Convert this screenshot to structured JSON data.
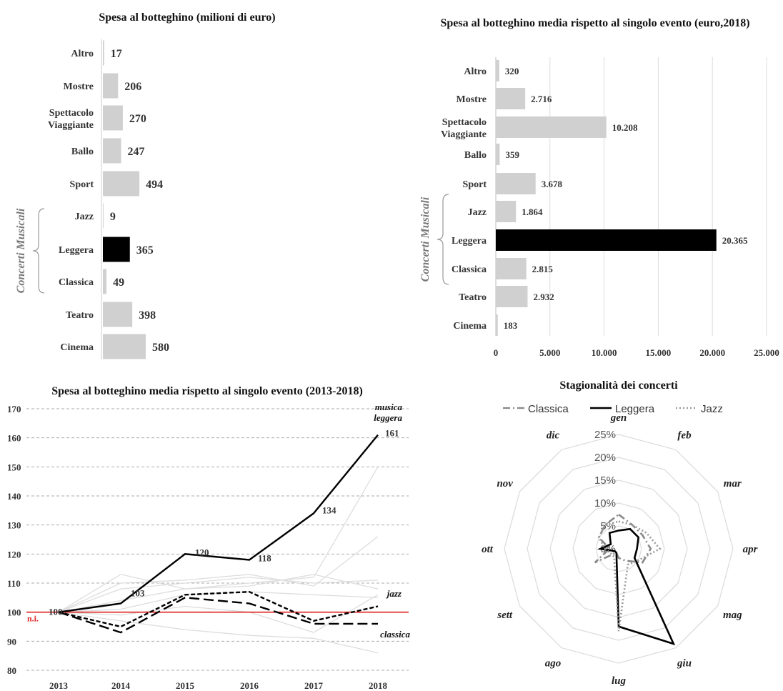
{
  "chart_data": [
    {
      "type": "bar",
      "orientation": "horizontal",
      "title": "Spesa al botteghino (milioni di euro)",
      "group_label": "Concerti Musicali",
      "group_members": [
        "Jazz",
        "Leggera",
        "Classica"
      ],
      "categories": [
        "Altro",
        "Mostre",
        "Spettacolo Viaggiante",
        "Ballo",
        "Sport",
        "Jazz",
        "Leggera",
        "Classica",
        "Teatro",
        "Cinema"
      ],
      "values": [
        17,
        206,
        270,
        247,
        494,
        9,
        365,
        49,
        398,
        580
      ],
      "labels": [
        "17",
        "206",
        "270",
        "247",
        "494",
        "9",
        "365",
        "49",
        "398",
        "580"
      ],
      "highlight": "Leggera",
      "colors": {
        "bar": "#d0d0d0",
        "highlight": "#000000"
      }
    },
    {
      "type": "bar",
      "orientation": "horizontal",
      "title": "Spesa al botteghino media rispetto al singolo evento (euro,2018)",
      "group_label": "Concerti Musicali",
      "group_members": [
        "Jazz",
        "Leggera",
        "Classica"
      ],
      "categories": [
        "Altro",
        "Mostre",
        "Spettacolo Viaggiante",
        "Ballo",
        "Sport",
        "Jazz",
        "Leggera",
        "Classica",
        "Teatro",
        "Cinema"
      ],
      "values": [
        320,
        2716,
        10208,
        359,
        3678,
        1864,
        20365,
        2815,
        2932,
        183
      ],
      "labels": [
        "320",
        "2.716",
        "10.208",
        "359",
        "3.678",
        "1.864",
        "20.365",
        "2.815",
        "2.932",
        "183"
      ],
      "xlim": [
        0,
        25000
      ],
      "xticks": [
        0,
        5000,
        10000,
        15000,
        20000,
        25000
      ],
      "xtick_labels": [
        "0",
        "5.000",
        "10.000",
        "15.000",
        "20.000",
        "25.000"
      ],
      "grid": "vertical",
      "highlight": "Leggera",
      "colors": {
        "bar": "#d0d0d0",
        "highlight": "#000000"
      }
    },
    {
      "type": "line",
      "title": "Spesa al botteghino media rispetto al singolo evento (2013-2018)",
      "x": [
        "2013",
        "2014",
        "2015",
        "2016",
        "2017",
        "2018"
      ],
      "ylim": [
        80,
        170
      ],
      "yticks": [
        80,
        90,
        100,
        110,
        120,
        130,
        140,
        150,
        160,
        170
      ],
      "grid": "horizontal dashed",
      "baseline": {
        "value": 100,
        "label": "n.i.",
        "color": "#e02020"
      },
      "series": [
        {
          "name": "musica leggera",
          "values": [
            100,
            103,
            120,
            118,
            134,
            161
          ],
          "style": "solid",
          "color": "#000000",
          "point_labels": [
            "100",
            "103",
            "120",
            "118",
            "134",
            "161"
          ]
        },
        {
          "name": "jazz",
          "values": [
            100,
            95,
            106,
            107,
            97,
            102
          ],
          "style": "dotted-dash",
          "color": "#000000"
        },
        {
          "name": "classica",
          "values": [
            100,
            93,
            105,
            103,
            96,
            96
          ],
          "style": "long-dash",
          "color": "#000000"
        },
        {
          "values": [
            100,
            113,
            108,
            110,
            112,
            150
          ],
          "style": "background",
          "color": "#dddddd"
        },
        {
          "values": [
            100,
            110,
            111,
            113,
            109,
            126
          ],
          "style": "background",
          "color": "#dddddd"
        },
        {
          "values": [
            100,
            108,
            110,
            112,
            110,
            111
          ],
          "style": "background",
          "color": "#dddddd"
        },
        {
          "values": [
            100,
            104,
            108,
            109,
            113,
            108
          ],
          "style": "background",
          "color": "#dddddd"
        },
        {
          "values": [
            100,
            101,
            106,
            107,
            106,
            105
          ],
          "style": "background",
          "color": "#dddddd"
        },
        {
          "values": [
            100,
            97,
            94,
            92,
            91,
            86
          ],
          "style": "background",
          "color": "#dddddd"
        },
        {
          "values": [
            100,
            99,
            102,
            100,
            93,
            106
          ],
          "style": "background",
          "color": "#dddddd"
        }
      ],
      "annotations": {
        "leggera": "musica leggera",
        "jazz": "jazz",
        "classica": "classica"
      }
    },
    {
      "type": "radar",
      "title": "Stagionalità dei concerti",
      "categories": [
        "gen",
        "feb",
        "mar",
        "apr",
        "mag",
        "giu",
        "lug",
        "ago",
        "sett",
        "ott",
        "nov",
        "dic"
      ],
      "rlim": [
        0,
        25
      ],
      "ring_labels": [
        "0%",
        "5%",
        "10%",
        "15%",
        "20%",
        "25%"
      ],
      "legend": [
        "Classica",
        "Leggera",
        "Jazz"
      ],
      "series": [
        {
          "name": "Classica",
          "values": [
            7.5,
            6,
            6,
            7,
            6,
            3,
            2,
            1,
            6,
            2,
            5,
            6
          ],
          "style": "dash-dot",
          "color": "#888888"
        },
        {
          "name": "Leggera",
          "values": [
            4,
            5,
            5,
            4,
            4,
            24,
            17,
            1,
            1,
            4,
            2,
            4
          ],
          "style": "solid",
          "color": "#000000"
        },
        {
          "name": "Jazz",
          "values": [
            6,
            6,
            7,
            9,
            5,
            4,
            18,
            2,
            2,
            3,
            5,
            6
          ],
          "style": "dotted",
          "color": "#999999"
        }
      ]
    }
  ]
}
